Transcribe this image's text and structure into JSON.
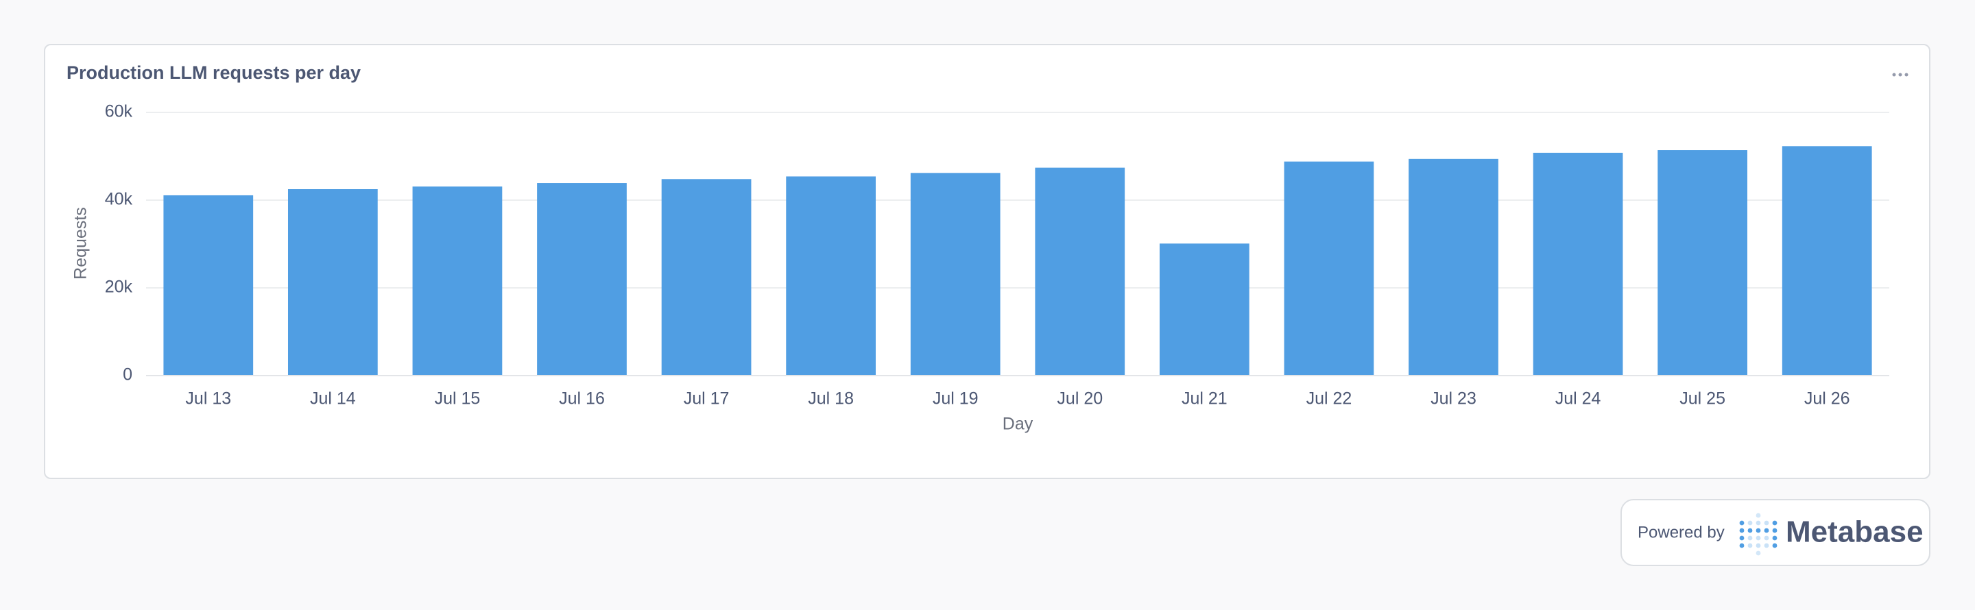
{
  "chart_data": {
    "type": "bar",
    "title": "Production LLM requests per day",
    "x_label": "Day",
    "y_label": "Requests",
    "categories": [
      "Jul 13",
      "Jul 14",
      "Jul 15",
      "Jul 16",
      "Jul 17",
      "Jul 18",
      "Jul 19",
      "Jul 20",
      "Jul 21",
      "Jul 22",
      "Jul 23",
      "Jul 24",
      "Jul 25",
      "Jul 26"
    ],
    "values": [
      41100,
      42500,
      43100,
      43900,
      44800,
      45400,
      46200,
      47400,
      30100,
      48800,
      49400,
      50800,
      51400,
      52300
    ],
    "color": "#509ee3",
    "ylim": [
      0,
      60000
    ],
    "yticks": [
      0,
      {
        "value": 20000,
        "label": "20k"
      },
      {
        "value": 40000,
        "label": "40k"
      },
      {
        "value": 60000,
        "label": "60k"
      }
    ],
    "grid": true
  },
  "footer": {
    "powered_by": "Powered by",
    "brand": "Metabase"
  }
}
